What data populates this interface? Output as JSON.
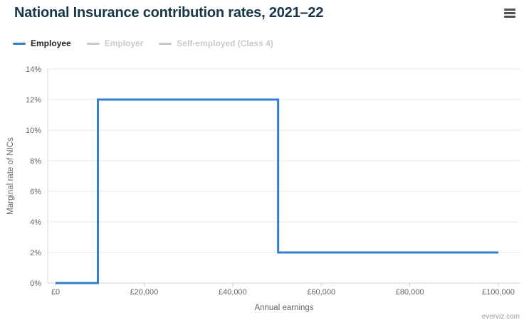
{
  "header": {
    "menu_icon": "hamburger-menu-icon"
  },
  "footer": {
    "credit": "everviz.com"
  },
  "chart_data": {
    "type": "line",
    "subtype": "step",
    "title": "National Insurance contribution rates, 2021–22",
    "xlabel": "Annual earnings",
    "ylabel": "Marginal rate of NICs",
    "xlim": [
      0,
      100000
    ],
    "ylim": [
      0,
      14
    ],
    "x_ticks": [
      "£0",
      "£20,000",
      "£40,000",
      "£60,000",
      "£80,000",
      "£100,000"
    ],
    "x_tick_values": [
      0,
      20000,
      40000,
      60000,
      80000,
      100000
    ],
    "y_ticks": [
      "0%",
      "2%",
      "4%",
      "6%",
      "8%",
      "10%",
      "12%",
      "14%"
    ],
    "y_tick_values": [
      0,
      2,
      4,
      6,
      8,
      10,
      12,
      14
    ],
    "grid": "horizontal",
    "legend_position": "top-left",
    "colors": {
      "accent_blue": "#2f7cd2",
      "disabled_gray": "#c9c9c9",
      "active_label": "#222222"
    },
    "series": [
      {
        "name": "Employee",
        "color": "#2f7cd2",
        "visible": true,
        "points": [
          [
            0,
            0
          ],
          [
            9568,
            0
          ],
          [
            9568,
            12
          ],
          [
            50270,
            12
          ],
          [
            50270,
            2
          ],
          [
            100000,
            2
          ]
        ]
      },
      {
        "name": "Employer",
        "color": "#c9c9c9",
        "visible": false,
        "points": []
      },
      {
        "name": "Self-employed (Class 4)",
        "color": "#c9c9c9",
        "visible": false,
        "points": []
      }
    ]
  }
}
